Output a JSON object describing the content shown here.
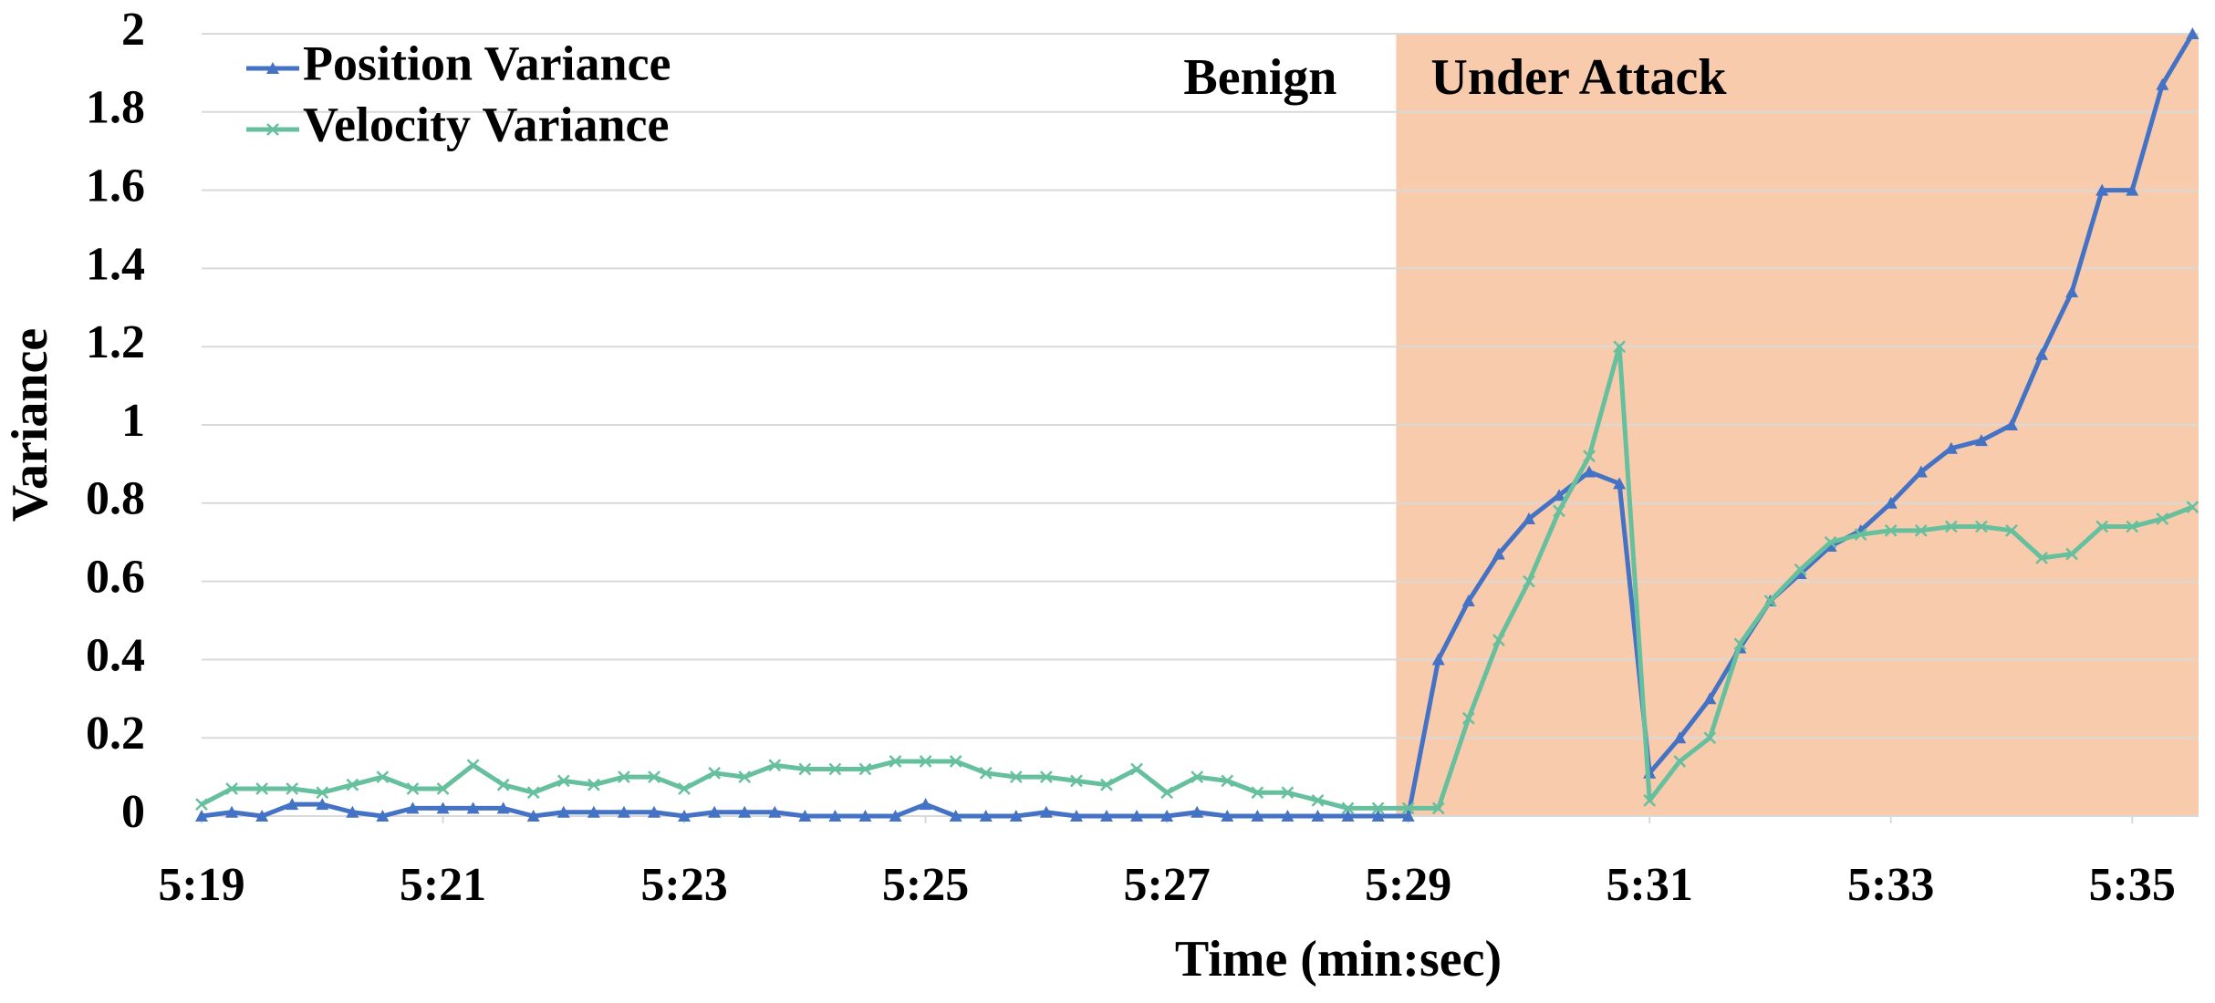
{
  "chart_data": {
    "type": "line",
    "x_label": "Time (min:sec)",
    "y_label": "Variance",
    "annotations": [
      "Benign",
      "Under Attack"
    ],
    "shaded_region": {
      "xlim": [
        328.9,
        335.55
      ],
      "color": "#f8cbad"
    },
    "xlim": [
      319,
      335.55
    ],
    "ylim": [
      0,
      2
    ],
    "xticks": [
      {
        "value": 319,
        "label": "5:19"
      },
      {
        "value": 321,
        "label": "5:21"
      },
      {
        "value": 323,
        "label": "5:23"
      },
      {
        "value": 325,
        "label": "5:25"
      },
      {
        "value": 327,
        "label": "5:27"
      },
      {
        "value": 329,
        "label": "5:29"
      },
      {
        "value": 331,
        "label": "5:31"
      },
      {
        "value": 333,
        "label": "5:33"
      },
      {
        "value": 335,
        "label": "5:35"
      }
    ],
    "yticks": [
      0,
      0.2,
      0.4,
      0.6,
      0.8,
      1,
      1.2,
      1.4,
      1.6,
      1.8,
      2
    ],
    "grid": true,
    "legend": "top-left",
    "x": [
      319,
      319.25,
      319.5,
      319.75,
      320,
      320.25,
      320.5,
      320.75,
      321,
      321.25,
      321.5,
      321.75,
      322,
      322.25,
      322.5,
      322.75,
      323,
      323.25,
      323.5,
      323.75,
      324,
      324.25,
      324.5,
      324.75,
      325,
      325.25,
      325.5,
      325.75,
      326,
      326.25,
      326.5,
      326.75,
      327,
      327.25,
      327.5,
      327.75,
      328,
      328.25,
      328.5,
      328.75,
      329,
      329.25,
      329.5,
      329.75,
      330,
      330.25,
      330.5,
      330.75,
      331,
      331.25,
      331.5,
      331.75,
      332,
      332.25,
      332.5,
      332.75,
      333,
      333.25,
      333.5,
      333.75,
      334,
      334.25,
      334.5,
      334.75,
      335,
      335.25,
      335.5
    ],
    "series": [
      {
        "name": "Position Variance",
        "color": "#4472c4",
        "marker": "triangle",
        "values": [
          0,
          0.01,
          0,
          0.03,
          0.03,
          0.01,
          0,
          0.02,
          0.02,
          0.02,
          0.02,
          0,
          0.01,
          0.01,
          0.01,
          0.01,
          0,
          0.01,
          0.01,
          0.01,
          0,
          0,
          0,
          0,
          0.03,
          0,
          0,
          0,
          0.01,
          0,
          0,
          0,
          0,
          0.01,
          0,
          0,
          0,
          0,
          0,
          0,
          0,
          0.4,
          0.55,
          0.67,
          0.76,
          0.82,
          0.88,
          0.85,
          0.11,
          0.2,
          0.3,
          0.43,
          0.55,
          0.62,
          0.69,
          0.73,
          0.8,
          0.88,
          0.94,
          0.96,
          1.0,
          1.18,
          1.34,
          1.6,
          1.6,
          1.87,
          2.0
        ]
      },
      {
        "name": "Velocity Variance",
        "color": "#66c09e",
        "marker": "x",
        "values": [
          0.03,
          0.07,
          0.07,
          0.07,
          0.06,
          0.08,
          0.1,
          0.07,
          0.07,
          0.13,
          0.08,
          0.06,
          0.09,
          0.08,
          0.1,
          0.1,
          0.07,
          0.11,
          0.1,
          0.13,
          0.12,
          0.12,
          0.12,
          0.14,
          0.14,
          0.14,
          0.11,
          0.1,
          0.1,
          0.09,
          0.08,
          0.12,
          0.06,
          0.1,
          0.09,
          0.06,
          0.06,
          0.04,
          0.02,
          0.02,
          0.02,
          0.02,
          0.25,
          0.45,
          0.6,
          0.78,
          0.92,
          1.2,
          0.04,
          0.14,
          0.2,
          0.44,
          0.55,
          0.63,
          0.7,
          0.72,
          0.73,
          0.73,
          0.74,
          0.74,
          0.73,
          0.66,
          0.67,
          0.74,
          0.74,
          0.76,
          0.79
        ]
      }
    ]
  }
}
